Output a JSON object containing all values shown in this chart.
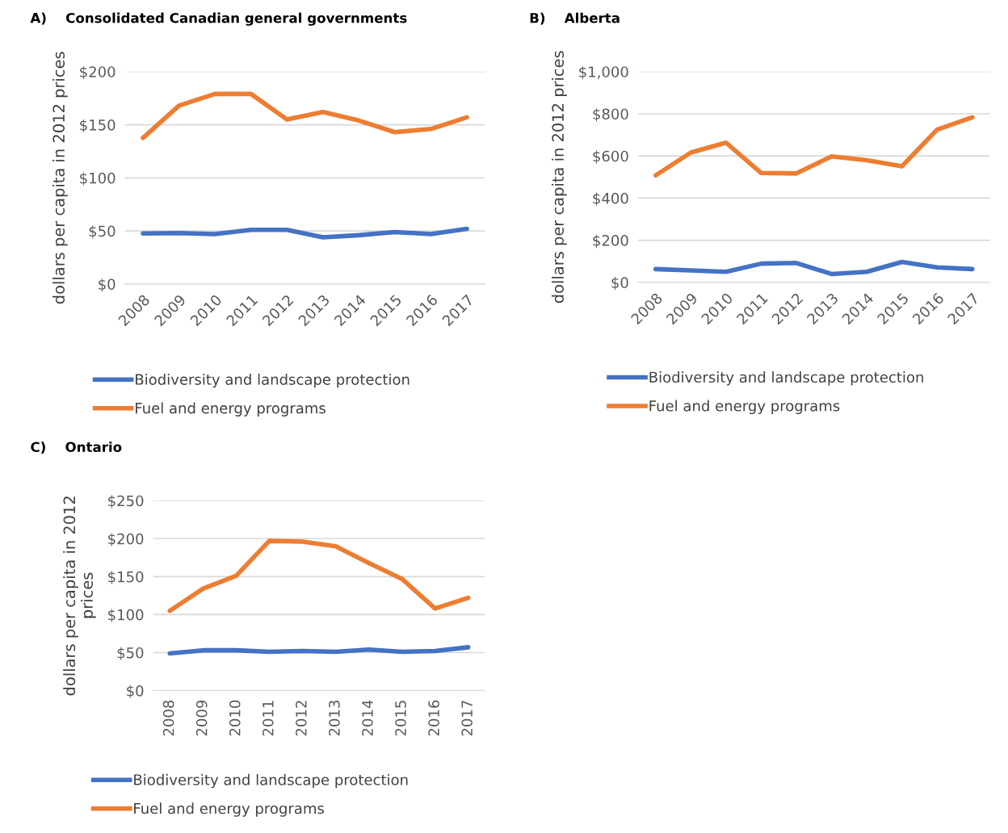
{
  "chart_data": [
    {
      "type": "line",
      "title": "A)    Consolidated Canadian general governments",
      "ylabel": "dollars per capita in 2012 prices",
      "categories": [
        "2008",
        "2009",
        "2010",
        "2011",
        "2012",
        "2013",
        "2014",
        "2015",
        "2016",
        "2017"
      ],
      "ylim": [
        0,
        200
      ],
      "yticks": [
        {
          "value": 0,
          "label": "$0"
        },
        {
          "value": 50,
          "label": "$50"
        },
        {
          "value": 100,
          "label": "$100"
        },
        {
          "value": 150,
          "label": "$150"
        },
        {
          "value": 200,
          "label": "$200"
        }
      ],
      "grid": "y",
      "legend": "bottom",
      "marker": "none",
      "line_style": "solid",
      "series": [
        {
          "name": "Biodiversity and landscape protection",
          "color": "#4472c4",
          "values": [
            47.6,
            48,
            47,
            51,
            51,
            44,
            46,
            49,
            47,
            52
          ]
        },
        {
          "name": "Fuel and energy programs",
          "color": "#ed7d31",
          "values": [
            137.6,
            168,
            179,
            179,
            155,
            162,
            154,
            143,
            146,
            157
          ]
        }
      ]
    },
    {
      "type": "line",
      "title": "B)    Alberta",
      "ylabel": "dollars per capita in 2012 prices",
      "categories": [
        "2008",
        "2009",
        "2010",
        "2011",
        "2012",
        "2013",
        "2014",
        "2015",
        "2016",
        "2017"
      ],
      "ylim": [
        0,
        1000
      ],
      "yticks": [
        {
          "value": 0,
          "label": "$0"
        },
        {
          "value": 200,
          "label": "$200"
        },
        {
          "value": 400,
          "label": "$400"
        },
        {
          "value": 600,
          "label": "$600"
        },
        {
          "value": 800,
          "label": "$800"
        },
        {
          "value": 1000,
          "label": "$1,000"
        }
      ],
      "grid": "y",
      "legend": "bottom",
      "marker": "none",
      "line_style": "solid",
      "series": [
        {
          "name": "Biodiversity and landscape protection",
          "color": "#4472c4",
          "values": [
            63,
            57,
            50,
            89,
            92,
            40,
            50,
            97,
            71,
            63
          ]
        },
        {
          "name": "Fuel and energy programs",
          "color": "#ed7d31",
          "values": [
            508,
            616,
            663,
            519,
            517,
            598,
            580,
            551,
            725,
            783
          ]
        }
      ]
    },
    {
      "type": "line",
      "title": "C)    Ontario",
      "ylabel": "dollars per capita in 2012\nprices",
      "categories": [
        "2008",
        "2009",
        "2010",
        "2011",
        "2012",
        "2013",
        "2014",
        "2015",
        "2016",
        "2017"
      ],
      "ylim": [
        0,
        250
      ],
      "yticks": [
        {
          "value": 0,
          "label": "$0"
        },
        {
          "value": 50,
          "label": "$50"
        },
        {
          "value": 100,
          "label": "$100"
        },
        {
          "value": 150,
          "label": "$150"
        },
        {
          "value": 200,
          "label": "$200"
        },
        {
          "value": 250,
          "label": "$250"
        }
      ],
      "grid": "y",
      "legend": "bottom",
      "marker": "none",
      "line_style": "solid",
      "series": [
        {
          "name": "Biodiversity and landscape protection",
          "color": "#4472c4",
          "values": [
            49,
            53,
            53,
            51,
            52,
            51,
            54,
            51,
            52,
            57
          ]
        },
        {
          "name": "Fuel and energy programs",
          "color": "#ed7d31",
          "values": [
            105,
            134,
            151,
            197,
            196,
            190,
            168,
            147,
            108,
            122
          ]
        }
      ]
    }
  ]
}
